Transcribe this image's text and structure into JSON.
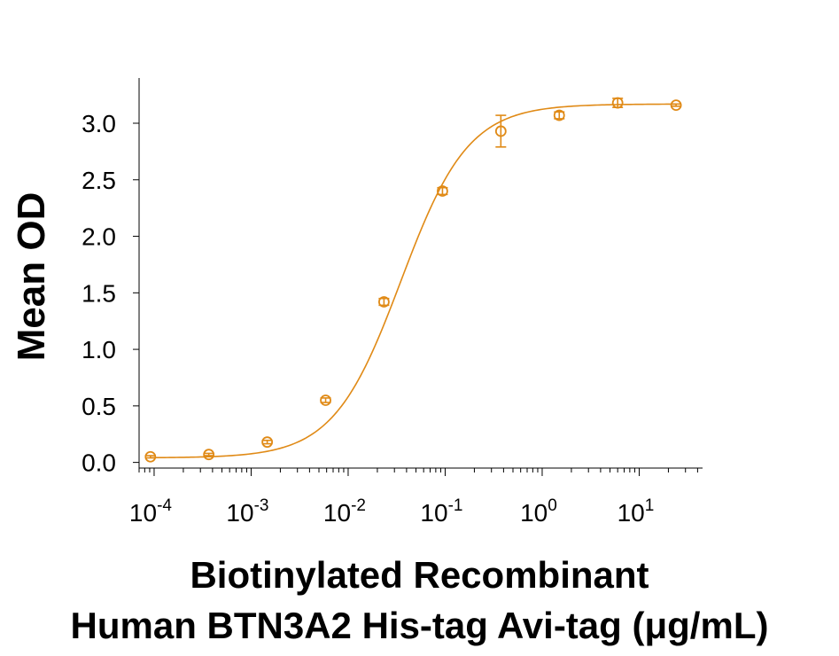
{
  "chart_data": {
    "type": "scatter",
    "title": "",
    "xlabel_lines": [
      "Biotinylated Recombinant",
      "Human BTN3A2 His-tag Avi-tag (μg/mL)"
    ],
    "ylabel": "Mean OD",
    "x_scale": "log",
    "xlim": [
      7e-05,
      45
    ],
    "ylim": [
      -0.05,
      3.4
    ],
    "y_ticks": [
      "0.0",
      "0.5",
      "1.0",
      "1.5",
      "2.0",
      "2.5",
      "3.0"
    ],
    "x_tick_labels": [
      {
        "value": 0.0001,
        "base": "10",
        "exp": "-4"
      },
      {
        "value": 0.001,
        "base": "10",
        "exp": "-3"
      },
      {
        "value": 0.01,
        "base": "10",
        "exp": "-2"
      },
      {
        "value": 0.1,
        "base": "10",
        "exp": "-1"
      },
      {
        "value": 1,
        "base": "10",
        "exp": "0"
      },
      {
        "value": 10,
        "base": "10",
        "exp": "1"
      }
    ],
    "color": "#E08A16",
    "grid": false,
    "series": [
      {
        "points": [
          {
            "x": 9.16e-05,
            "y": 0.05,
            "err": 0.01
          },
          {
            "x": 0.000366,
            "y": 0.07,
            "err": 0.01
          },
          {
            "x": 0.001465,
            "y": 0.18,
            "err": 0.015
          },
          {
            "x": 0.00586,
            "y": 0.55,
            "err": 0.02
          },
          {
            "x": 0.0234,
            "y": 1.42,
            "err": 0.03
          },
          {
            "x": 0.0938,
            "y": 2.4,
            "err": 0.03
          },
          {
            "x": 0.375,
            "y": 2.93,
            "err": 0.14
          },
          {
            "x": 1.5,
            "y": 3.07,
            "err": 0.03
          },
          {
            "x": 6.0,
            "y": 3.18,
            "err": 0.04
          },
          {
            "x": 24.0,
            "y": 3.16,
            "err": 0.01
          }
        ],
        "fit": {
          "model": "4PL",
          "bottom": 0.04,
          "top": 3.17,
          "ec50": 0.035,
          "hill": 1.25
        }
      }
    ]
  }
}
